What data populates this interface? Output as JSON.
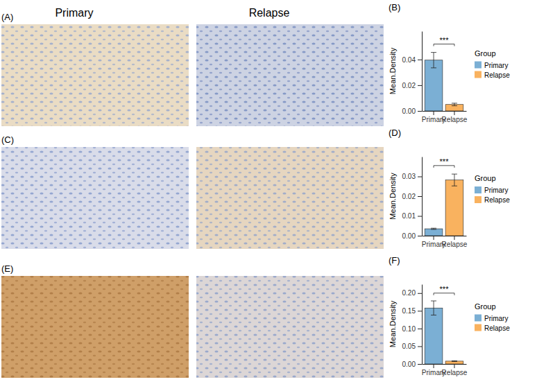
{
  "figure": {
    "column_titles": [
      "Primary",
      "Relapse"
    ],
    "image_panels": [
      {
        "label": "(A)"
      },
      {
        "label": "(C)"
      },
      {
        "label": "(E)"
      }
    ]
  },
  "chart_data": [
    {
      "type": "bar",
      "panel": "(B)",
      "y_label": "Mean.Density",
      "legend_title": "Group",
      "legend": "right",
      "categories": [
        "Primary",
        "Relapse"
      ],
      "values": [
        0.0395,
        0.005
      ],
      "errors": [
        0.006,
        0.001
      ],
      "colors": [
        "#7bafd4",
        "#f9b25f"
      ],
      "ylim": [
        0,
        0.062
      ],
      "yticks": [
        {
          "value": 0,
          "label": "0.00"
        },
        {
          "value": 0.02,
          "label": "0.02"
        },
        {
          "value": 0.04,
          "label": "0.04"
        }
      ],
      "annotations": [
        {
          "text": "***",
          "y": 0.052
        }
      ]
    },
    {
      "type": "bar",
      "panel": "(D)",
      "y_label": "Mean.Density",
      "legend_title": "Group",
      "legend": "right",
      "categories": [
        "Primary",
        "Relapse"
      ],
      "values": [
        0.0035,
        0.0282
      ],
      "errors": [
        0.0003,
        0.003
      ],
      "colors": [
        "#7bafd4",
        "#f9b25f"
      ],
      "ylim": [
        0,
        0.04
      ],
      "yticks": [
        {
          "value": 0,
          "label": "0.00"
        },
        {
          "value": 0.01,
          "label": "0.01"
        },
        {
          "value": 0.02,
          "label": "0.02"
        },
        {
          "value": 0.03,
          "label": "0.03"
        }
      ],
      "annotations": [
        {
          "text": "***",
          "y": 0.0355
        }
      ]
    },
    {
      "type": "bar",
      "panel": "(F)",
      "y_label": "Mean.Density",
      "legend_title": "Group",
      "legend": "right",
      "categories": [
        "Primary",
        "Relapse"
      ],
      "values": [
        0.158,
        0.008
      ],
      "errors": [
        0.02,
        0.001
      ],
      "colors": [
        "#7bafd4",
        "#f9b25f"
      ],
      "ylim": [
        0,
        0.225
      ],
      "yticks": [
        {
          "value": 0,
          "label": "0.00"
        },
        {
          "value": 0.05,
          "label": "0.05"
        },
        {
          "value": 0.1,
          "label": "0.10"
        },
        {
          "value": 0.15,
          "label": "0.15"
        },
        {
          "value": 0.2,
          "label": "0.20"
        }
      ],
      "annotations": [
        {
          "text": "***",
          "y": 0.2
        }
      ]
    }
  ]
}
